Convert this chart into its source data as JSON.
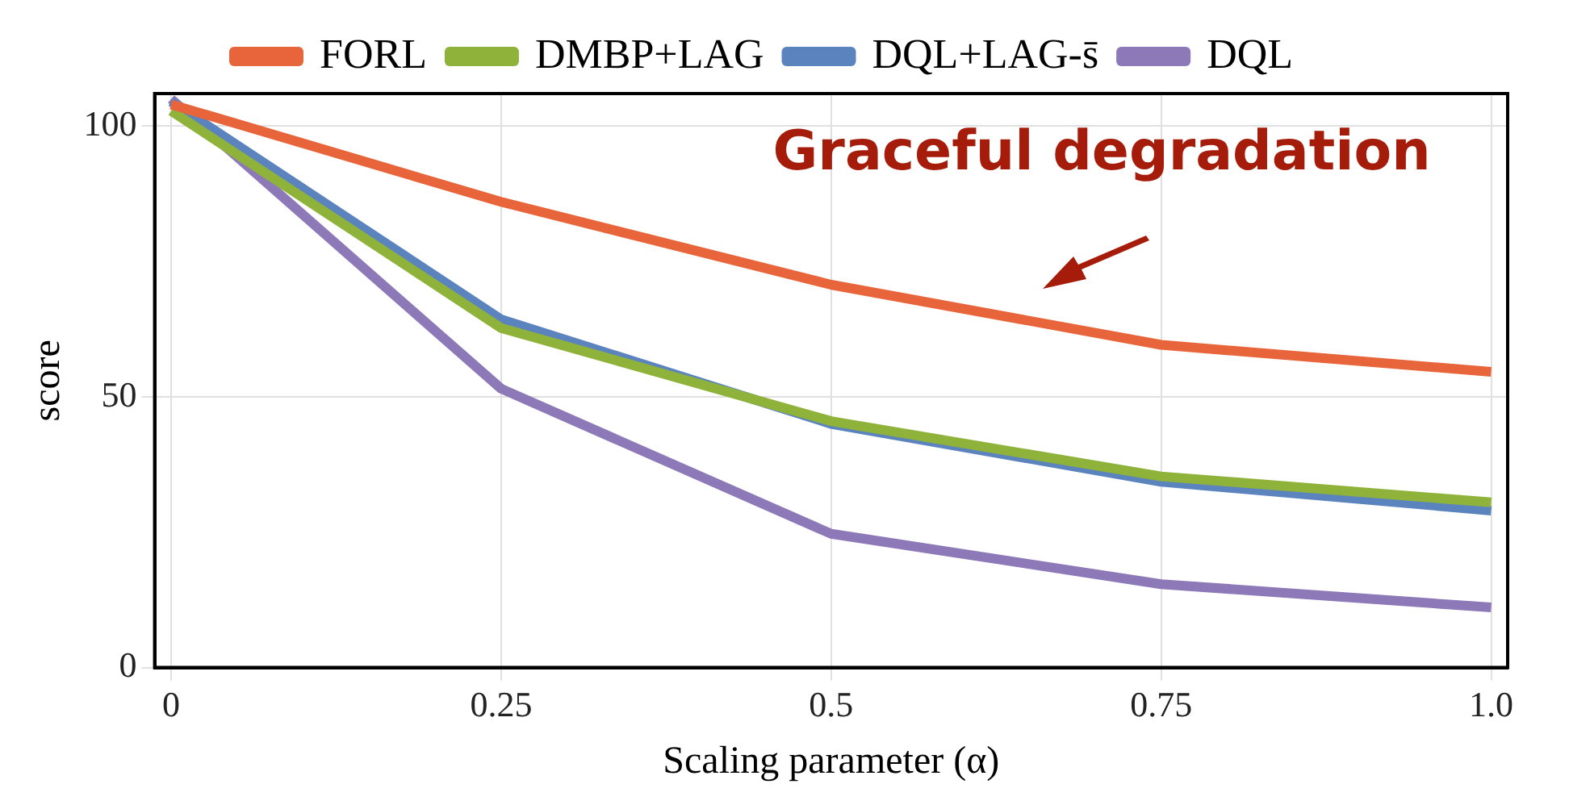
{
  "chart_data": {
    "type": "line",
    "x": [
      0,
      0.25,
      0.5,
      0.75,
      1.0
    ],
    "series": [
      {
        "name": "FORL",
        "color": "#e8643a",
        "values": [
          104,
          86,
          70.7,
          59.6,
          54.6
        ]
      },
      {
        "name": "DMBP+LAG",
        "color": "#8fb33a",
        "values": [
          102.8,
          62.7,
          45.5,
          35.3,
          30.5
        ]
      },
      {
        "name": "DQL+LAG-s̄",
        "color": "#5b84bf",
        "values": [
          104.5,
          64.3,
          45,
          34.3,
          29
        ]
      },
      {
        "name": "DQL",
        "color": "#8d79b8",
        "values": [
          105,
          51.5,
          24.7,
          15.4,
          11.1
        ]
      }
    ],
    "xlabel": "Scaling parameter (α)",
    "ylabel": "score",
    "xlim": [
      -0.0125,
      1.0125
    ],
    "ylim": [
      0,
      106
    ],
    "xticks": [
      0,
      0.25,
      0.5,
      {
        "value": 1.0,
        "label": "1.0"
      },
      0.75
    ],
    "yticks": [
      0,
      50,
      100
    ],
    "grid": true,
    "legend": "top",
    "marker": "none",
    "line_style": "solid",
    "annotations": [
      "Graceful degradation"
    ]
  }
}
